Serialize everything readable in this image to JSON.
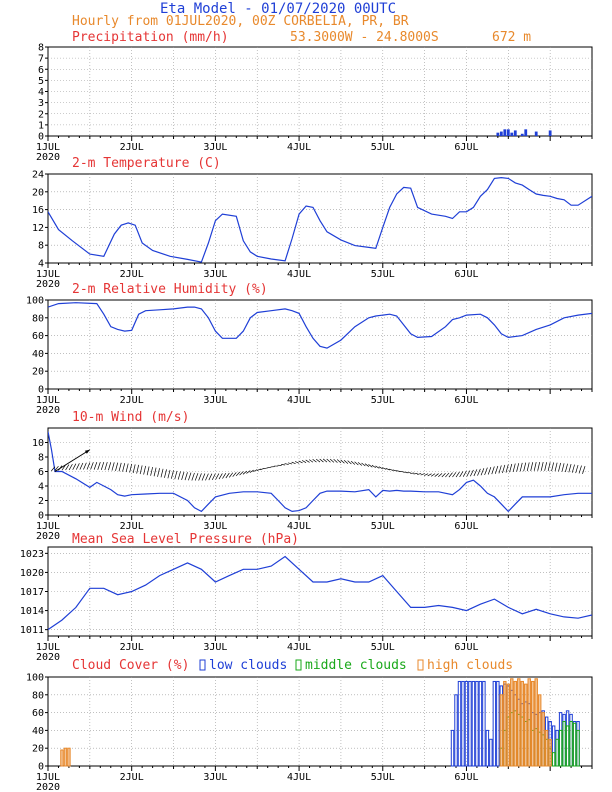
{
  "header": {
    "title": "Eta Model - 01/07/2020 00UTC",
    "subtitle": "Hourly from 01JUL2020, 00Z  CORBELIA, PR, BR",
    "coords": "53.3000W - 24.8000S",
    "elevation": "672  m"
  },
  "x_axis": {
    "labels": [
      "1JUL",
      "2JUL",
      "3JUL",
      "4JUL",
      "5JUL",
      "6JUL"
    ],
    "year": "2020"
  },
  "colors": {
    "title": "#1f3fd6",
    "subtitle": "#e8892c",
    "panel_title": "#e53535",
    "line": "#1f3fd6",
    "low": "#1f3fd6",
    "middle": "#1aa81a",
    "high": "#e8892c",
    "grid": "#9a9a9a"
  },
  "chart_data": [
    {
      "id": "precip",
      "type": "bar",
      "title": "Precipitation (mm/h)",
      "ylim": [
        0,
        8
      ],
      "yticks": [
        0,
        1,
        2,
        3,
        4,
        5,
        6,
        7,
        8
      ],
      "x_hours": [
        129,
        130,
        131,
        132,
        133,
        134,
        136,
        137,
        140,
        144
      ],
      "values": [
        0.3,
        0.4,
        0.6,
        0.6,
        0.3,
        0.5,
        0.2,
        0.6,
        0.4,
        0.5
      ]
    },
    {
      "id": "temp",
      "type": "line",
      "title": "2-m Temperature (C)",
      "ylim": [
        4,
        24
      ],
      "yticks": [
        4,
        8,
        12,
        16,
        20,
        24
      ],
      "x_hours": [
        0,
        3,
        7,
        12,
        16,
        19,
        21,
        23,
        25,
        27,
        30,
        35,
        40,
        44,
        46,
        48,
        50,
        54,
        56,
        58,
        60,
        64,
        68,
        70,
        72,
        74,
        76,
        78,
        80,
        84,
        88,
        92,
        94,
        96,
        98,
        100,
        102,
        104,
        106,
        110,
        114,
        116,
        118,
        120,
        122,
        124,
        126,
        128,
        130,
        132,
        134,
        136,
        138,
        140,
        142,
        144,
        146,
        148,
        150,
        152,
        156
      ],
      "values": [
        15.5,
        11.5,
        9.0,
        6.0,
        5.5,
        10.5,
        12.5,
        13.0,
        12.5,
        8.5,
        6.8,
        5.5,
        4.8,
        4.2,
        8.5,
        13.5,
        15.0,
        14.5,
        9.0,
        6.5,
        5.5,
        4.9,
        4.5,
        9.5,
        15.0,
        16.8,
        16.5,
        13.5,
        11.0,
        9.2,
        7.9,
        7.5,
        7.3,
        12.0,
        16.5,
        19.5,
        21.0,
        20.8,
        16.5,
        15.0,
        14.5,
        14.0,
        15.5,
        15.5,
        16.5,
        19.0,
        20.5,
        23.0,
        23.2,
        23.0,
        22.0,
        21.5,
        20.5,
        19.5,
        19.2,
        19.0,
        18.5,
        18.2,
        17.0,
        17.0,
        19.0
      ]
    },
    {
      "id": "rh",
      "type": "line",
      "title": "2-m Relative Humidity (%)",
      "ylim": [
        0,
        100
      ],
      "yticks": [
        0,
        20,
        40,
        60,
        80,
        100
      ],
      "x_hours": [
        0,
        3,
        8,
        14,
        16,
        18,
        20,
        22,
        24,
        26,
        28,
        32,
        36,
        40,
        42,
        44,
        46,
        48,
        50,
        54,
        56,
        58,
        60,
        64,
        68,
        70,
        72,
        74,
        76,
        78,
        80,
        84,
        88,
        92,
        94,
        96,
        98,
        100,
        102,
        104,
        106,
        110,
        114,
        116,
        118,
        120,
        124,
        126,
        128,
        130,
        132,
        136,
        140,
        144,
        148,
        152,
        156
      ],
      "values": [
        92,
        96,
        97,
        96,
        84,
        70,
        67,
        65,
        66,
        84,
        88,
        89,
        90,
        92,
        92,
        90,
        80,
        65,
        57,
        57,
        65,
        80,
        86,
        88,
        90,
        88,
        85,
        70,
        57,
        48,
        46,
        55,
        70,
        80,
        82,
        83,
        84,
        82,
        72,
        62,
        58,
        59,
        70,
        78,
        80,
        83,
        84,
        80,
        72,
        62,
        58,
        60,
        67,
        72,
        80,
        83,
        85
      ]
    },
    {
      "id": "wind",
      "type": "line",
      "title": "10-m Wind (m/s)",
      "ylim": [
        0,
        12
      ],
      "yticks": [
        0,
        2,
        4,
        6,
        8,
        10
      ],
      "x_hours": [
        0,
        1,
        2,
        4,
        8,
        12,
        14,
        16,
        18,
        20,
        22,
        24,
        28,
        32,
        36,
        40,
        42,
        44,
        46,
        48,
        52,
        56,
        60,
        64,
        66,
        68,
        70,
        72,
        74,
        76,
        78,
        80,
        84,
        88,
        92,
        94,
        96,
        98,
        100,
        102,
        104,
        108,
        112,
        116,
        118,
        120,
        122,
        124,
        126,
        128,
        130,
        132,
        134,
        136,
        140,
        144,
        148,
        152,
        156
      ],
      "values": [
        11.5,
        9.0,
        6.0,
        6.0,
        5.0,
        3.8,
        4.5,
        4.0,
        3.5,
        2.8,
        2.6,
        2.8,
        2.9,
        3.0,
        3.0,
        2.0,
        1.0,
        0.5,
        1.5,
        2.5,
        3.0,
        3.2,
        3.2,
        3.0,
        2.0,
        1.0,
        0.5,
        0.6,
        1.0,
        2.0,
        3.0,
        3.3,
        3.3,
        3.2,
        3.5,
        2.5,
        3.4,
        3.3,
        3.4,
        3.3,
        3.3,
        3.2,
        3.2,
        2.8,
        3.5,
        4.5,
        4.8,
        4.0,
        3.0,
        2.5,
        1.5,
        0.5,
        1.5,
        2.5,
        2.5,
        2.5,
        2.8,
        3.0,
        3.0
      ]
    },
    {
      "id": "mslp",
      "type": "line",
      "title": "Mean Sea Level Pressure (hPa)",
      "ylim": [
        1010,
        1024
      ],
      "yticks": [
        1011,
        1014,
        1017,
        1020,
        1023
      ],
      "x_hours": [
        0,
        4,
        8,
        12,
        16,
        20,
        24,
        28,
        32,
        36,
        40,
        44,
        48,
        52,
        56,
        60,
        64,
        68,
        72,
        76,
        80,
        84,
        88,
        92,
        96,
        100,
        104,
        108,
        112,
        116,
        120,
        124,
        128,
        132,
        136,
        140,
        144,
        148,
        152,
        156
      ],
      "values": [
        1011,
        1012.5,
        1014.5,
        1017.5,
        1017.5,
        1016.5,
        1017.0,
        1018.0,
        1019.5,
        1020.5,
        1021.5,
        1020.5,
        1018.5,
        1019.5,
        1020.5,
        1020.5,
        1021.0,
        1022.5,
        1020.5,
        1018.5,
        1018.5,
        1019.0,
        1018.5,
        1018.5,
        1019.5,
        1017.0,
        1014.5,
        1014.5,
        1014.8,
        1014.5,
        1014.0,
        1015.0,
        1015.8,
        1014.5,
        1013.5,
        1014.2,
        1013.5,
        1013.0,
        1012.8,
        1013.3
      ]
    },
    {
      "id": "cloud",
      "type": "bar",
      "title": "Cloud Cover (%)",
      "ylim": [
        0,
        100
      ],
      "yticks": [
        0,
        20,
        40,
        60,
        80,
        100
      ],
      "legend": [
        "low clouds",
        "middle clouds",
        "high clouds"
      ],
      "series": [
        {
          "name": "low clouds",
          "x_hours": [
            116,
            117,
            118,
            119,
            120,
            121,
            122,
            123,
            124,
            125,
            126,
            127,
            128,
            129,
            130,
            131,
            132,
            133,
            134,
            135,
            136,
            137,
            138,
            139,
            140,
            141,
            142,
            143,
            144,
            145,
            146,
            147,
            148,
            149,
            150,
            151,
            152
          ],
          "values": [
            40,
            80,
            95,
            95,
            95,
            95,
            95,
            95,
            95,
            95,
            40,
            30,
            95,
            95,
            90,
            92,
            90,
            85,
            80,
            75,
            70,
            72,
            70,
            60,
            58,
            60,
            62,
            55,
            50,
            45,
            40,
            60,
            58,
            62,
            58,
            50,
            50
          ]
        },
        {
          "name": "middle clouds",
          "x_hours": [
            130,
            131,
            132,
            133,
            134,
            135,
            136,
            137,
            138,
            139,
            140,
            141,
            142,
            143,
            144,
            145,
            146,
            147,
            148,
            149,
            150,
            151,
            152
          ],
          "values": [
            20,
            40,
            55,
            60,
            62,
            58,
            55,
            50,
            52,
            40,
            42,
            38,
            35,
            30,
            20,
            15,
            30,
            40,
            50,
            45,
            50,
            48,
            40
          ]
        },
        {
          "name": "high clouds",
          "x_hours": [
            4,
            5,
            6,
            130,
            131,
            132,
            133,
            134,
            135,
            136,
            137,
            138,
            139,
            140,
            141,
            142,
            143,
            144
          ],
          "values": [
            18,
            20,
            20,
            80,
            95,
            92,
            98,
            95,
            98,
            95,
            92,
            98,
            95,
            98,
            80,
            60,
            40,
            30
          ]
        }
      ]
    }
  ]
}
